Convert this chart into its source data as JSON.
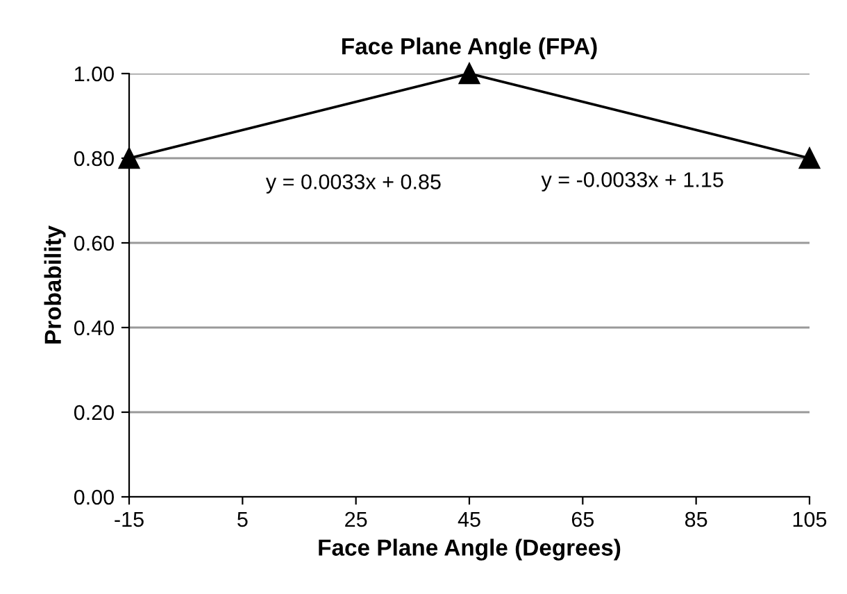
{
  "chart_data": {
    "type": "line",
    "title": "Face Plane Angle (FPA)",
    "xlabel": "Face Plane Angle (Degrees)",
    "ylabel": "Probability",
    "x": [
      -15,
      45,
      105
    ],
    "series": [
      {
        "color": "#000000",
        "values": [
          0.8,
          1.0,
          0.8
        ]
      }
    ],
    "marker": "triangle",
    "line_style": "solid",
    "xlim": [
      -15,
      105
    ],
    "xticks": [
      -15,
      5,
      25,
      45,
      65,
      85,
      105
    ],
    "ylim": [
      0,
      1
    ],
    "yticks": [
      {
        "value": 0,
        "label": "0.00"
      },
      {
        "value": 0.2,
        "label": "0.20"
      },
      {
        "value": 0.4,
        "label": "0.40"
      },
      {
        "value": 0.6,
        "label": "0.60"
      },
      {
        "value": 0.8,
        "label": "0.80"
      },
      {
        "value": 1.0,
        "label": "1.00"
      }
    ],
    "grid": "y",
    "legend": false,
    "annotations": [
      "y = 0.0033x + 0.85",
      "y = -0.0033x + 1.15"
    ]
  }
}
